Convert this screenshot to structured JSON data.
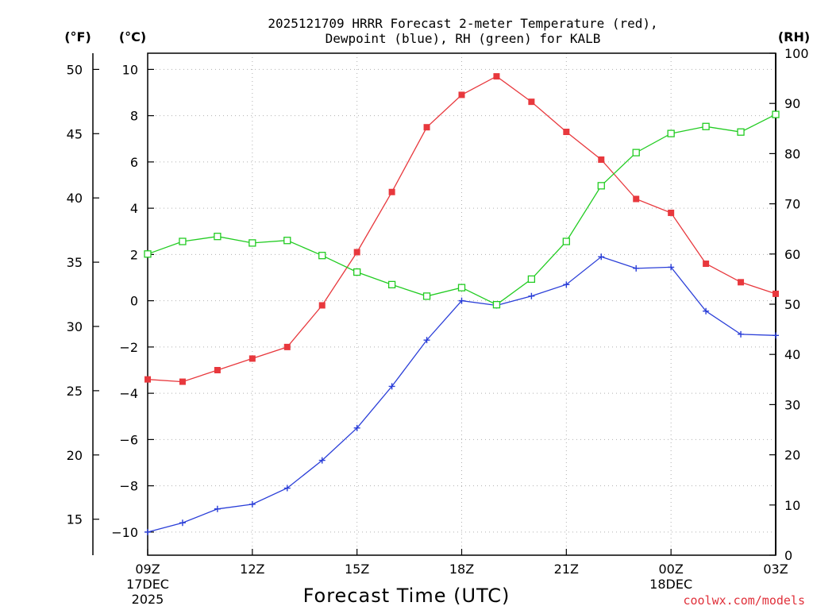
{
  "chart_data": {
    "type": "line",
    "title_line1": "2025121709 HRRR Forecast 2-meter Temperature (red),",
    "title_line2": "Dewpoint (blue), RH (green) for KALB",
    "xlabel": "Forecast Time (UTC)",
    "credit": "coolwx.com/models",
    "units": {
      "fahrenheit": "(°F)",
      "celsius": "(°C)",
      "rh": "(RH)"
    },
    "hours": [
      0,
      1,
      2,
      3,
      4,
      5,
      6,
      7,
      8,
      9,
      10,
      11,
      12,
      13,
      14,
      15,
      16,
      17,
      18
    ],
    "x_ticks": [
      {
        "hour": 0,
        "label": "09Z",
        "sub1": "17DEC",
        "sub2": "2025"
      },
      {
        "hour": 3,
        "label": "12Z",
        "sub1": "",
        "sub2": ""
      },
      {
        "hour": 6,
        "label": "15Z",
        "sub1": "",
        "sub2": ""
      },
      {
        "hour": 9,
        "label": "18Z",
        "sub1": "",
        "sub2": ""
      },
      {
        "hour": 12,
        "label": "21Z",
        "sub1": "",
        "sub2": ""
      },
      {
        "hour": 15,
        "label": "00Z",
        "sub1": "18DEC",
        "sub2": ""
      },
      {
        "hour": 18,
        "label": "03Z",
        "sub1": "",
        "sub2": ""
      }
    ],
    "celsius_ticks": [
      10,
      8,
      6,
      4,
      2,
      0,
      -2,
      -4,
      -6,
      -8,
      -10
    ],
    "fahrenheit_ticks": [
      50,
      45,
      40,
      35,
      30,
      25,
      20,
      15
    ],
    "rh_ticks": [
      100,
      90,
      80,
      70,
      60,
      50,
      40,
      30,
      20,
      10,
      0
    ],
    "ylim_celsius": [
      -11,
      10.7
    ],
    "ylim_rh": [
      0,
      100
    ],
    "series": [
      {
        "name": "Temperature",
        "color": "#e8383d",
        "marker": "filled-square",
        "values": [
          -3.4,
          -3.5,
          -3.0,
          -2.5,
          -2.0,
          -0.2,
          2.1,
          4.7,
          7.5,
          8.9,
          9.7,
          8.6,
          7.3,
          6.1,
          4.4,
          3.8,
          1.6,
          0.8,
          0.3
        ]
      },
      {
        "name": "Dewpoint",
        "color": "#2a3ed8",
        "marker": "plus",
        "values": [
          -10.0,
          -9.6,
          -9.0,
          -8.8,
          -8.1,
          -6.9,
          -5.5,
          -3.7,
          -1.7,
          0.0,
          -0.2,
          0.2,
          0.7,
          1.9,
          1.4,
          1.45,
          -0.45,
          -1.45,
          -1.5
        ]
      },
      {
        "name": "RH",
        "color": "#22cc22",
        "marker": "open-square",
        "axis": "rh",
        "values": [
          60,
          62.5,
          63.5,
          62.2,
          62.7,
          59.7,
          56.4,
          53.9,
          51.6,
          53.3,
          49.9,
          55.0,
          62.5,
          73.6,
          80.2,
          84.0,
          85.4,
          84.3,
          87.8
        ]
      }
    ]
  }
}
